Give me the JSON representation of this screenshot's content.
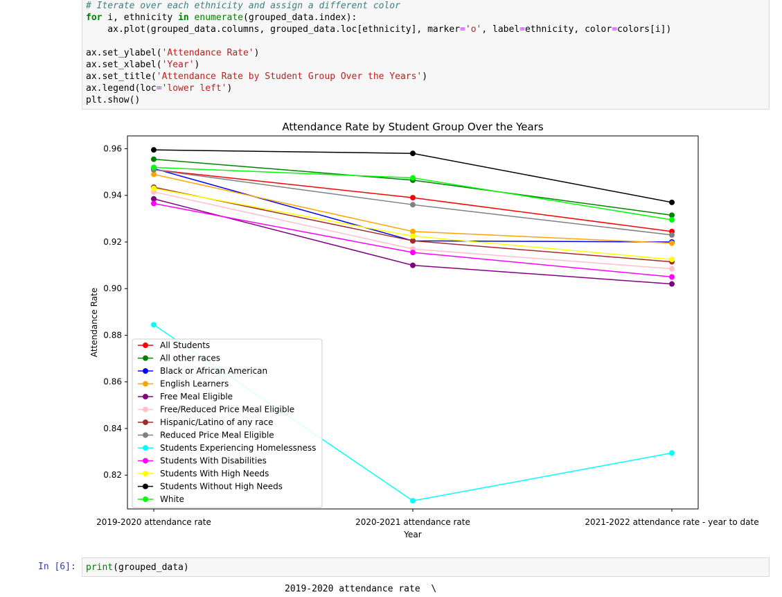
{
  "code_cell": {
    "line_comment": "# Iterate over each ethnicity and assign a different color",
    "line_for_kw": "for",
    "line_for_rest": " i, ethnicity ",
    "line_for_in": "in",
    "line_for_enum": "enumerate",
    "line_for_tail": "(grouped_data.index):",
    "line_plot_a": "    ax.plot(grouped_data.columns, grouped_data.loc[ethnicity], marker",
    "line_plot_eq1": "=",
    "line_plot_str": "'o'",
    "line_plot_b": ", label",
    "line_plot_eq2": "=",
    "line_plot_c": "ethnicity, color",
    "line_plot_eq3": "=",
    "line_plot_d": "colors[i])",
    "line_ylabel_a": "ax.set_ylabel(",
    "line_ylabel_s": "'Attendance Rate'",
    "line_ylabel_b": ")",
    "line_xlabel_a": "ax.set_xlabel(",
    "line_xlabel_s": "'Year'",
    "line_xlabel_b": ")",
    "line_title_a": "ax.set_title(",
    "line_title_s": "'Attendance Rate by Student Group Over the Years'",
    "line_title_b": ")",
    "line_legend_a": "ax.legend(loc",
    "line_legend_eq": "=",
    "line_legend_s": "'lower left'",
    "line_legend_b": ")",
    "line_show": "plt.show()"
  },
  "input_cell": {
    "prompt": "In [6]:",
    "code_fn": "print",
    "code_rest": "(grouped_data)"
  },
  "output_text": "2019-2020 attendance rate  \\",
  "chart_data": {
    "type": "line",
    "title": "Attendance Rate by Student Group Over the Years",
    "xlabel": "Year",
    "ylabel": "Attendance Rate",
    "categories": [
      "2019-2020 attendance rate",
      "2020-2021 attendance rate",
      "2021-2022 attendance rate - year to date"
    ],
    "ylim": [
      0.8055,
      0.9655
    ],
    "yticks": [
      0.82,
      0.84,
      0.86,
      0.88,
      0.9,
      0.92,
      0.94,
      0.96
    ],
    "ytick_labels": [
      "0.82",
      "0.84",
      "0.86",
      "0.88",
      "0.90",
      "0.92",
      "0.94",
      "0.96"
    ],
    "legend_loc": "lower left",
    "grid": false,
    "series": [
      {
        "name": "All Students",
        "color": "#ff0000",
        "values": [
          0.951,
          0.939,
          0.9245
        ]
      },
      {
        "name": "All other races",
        "color": "#008000",
        "values": [
          0.9555,
          0.9465,
          0.9315
        ]
      },
      {
        "name": "Black or African American",
        "color": "#0000ff",
        "values": [
          0.9515,
          0.9205,
          0.92
        ]
      },
      {
        "name": "English Learners",
        "color": "#ffa500",
        "values": [
          0.949,
          0.9245,
          0.9195
        ]
      },
      {
        "name": "Free Meal Eligible",
        "color": "#800080",
        "values": [
          0.9385,
          0.91,
          0.902
        ]
      },
      {
        "name": "Free/Reduced Price Meal Eligible",
        "color": "#ffc0cb",
        "values": [
          0.9415,
          0.917,
          0.9085
        ]
      },
      {
        "name": "Hispanic/Latino of any race",
        "color": "#a52a2a",
        "values": [
          0.9435,
          0.9205,
          0.9115
        ]
      },
      {
        "name": "Reduced Price Meal Eligible",
        "color": "#808080",
        "values": [
          0.951,
          0.936,
          0.923
        ]
      },
      {
        "name": "Students Experiencing Homelessness",
        "color": "#00ffff",
        "values": [
          0.8845,
          0.809,
          0.8295
        ]
      },
      {
        "name": "Students With Disabilities",
        "color": "#ff00ff",
        "values": [
          0.9365,
          0.9155,
          0.905
        ]
      },
      {
        "name": "Students With High Needs",
        "color": "#ffff00",
        "values": [
          0.943,
          0.9225,
          0.9125
        ]
      },
      {
        "name": "Students Without High Needs",
        "color": "#000000",
        "values": [
          0.9595,
          0.958,
          0.937
        ]
      },
      {
        "name": "White",
        "color": "#00ff00",
        "values": [
          0.952,
          0.9475,
          0.9295
        ]
      }
    ]
  }
}
